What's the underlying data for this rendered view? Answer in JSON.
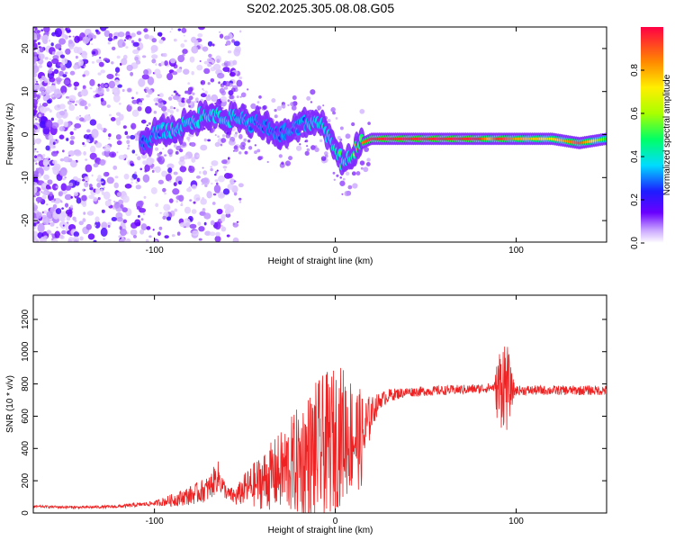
{
  "figure": {
    "title": "S202.2025.305.08.08.G05"
  },
  "chart_data": [
    {
      "type": "heatmap",
      "xlabel": "Height of straight line (km)",
      "ylabel": "Frequency (Hz)",
      "xlim": [
        -167,
        150
      ],
      "ylim": [
        -25,
        25
      ],
      "xticks": [
        -100,
        0,
        100
      ],
      "xtick_labels": [
        "-100",
        "0",
        "100"
      ],
      "yticks": [
        -20,
        -10,
        0,
        10,
        20
      ],
      "ytick_labels": [
        "-20",
        "-10",
        "0",
        "10",
        "20"
      ],
      "colorbar": {
        "label": "Normalized spectral amplitude",
        "range": [
          0,
          1
        ],
        "ticks": [
          0.0,
          0.2,
          0.4,
          0.6,
          0.8
        ],
        "tick_labels": [
          "0.0",
          "0.2",
          "0.4",
          "0.6",
          "0.8"
        ]
      },
      "ridge": {
        "x": [
          -107,
          -100,
          -90,
          -80,
          -70,
          -60,
          -50,
          -40,
          -30,
          -20,
          -10,
          -5,
          0,
          5,
          10,
          15,
          20,
          40,
          60,
          80,
          85,
          90,
          100,
          120,
          135,
          150
        ],
        "freq": [
          -2,
          0,
          1,
          3,
          5,
          4,
          3,
          2,
          0,
          2,
          3,
          1,
          -3,
          -7,
          -5,
          -2,
          -1,
          -1,
          -1,
          -1,
          -1,
          -1,
          -1,
          -1,
          -2,
          -1
        ],
        "amplitude": [
          0.25,
          0.35,
          0.45,
          0.45,
          0.5,
          0.45,
          0.4,
          0.3,
          0.3,
          0.35,
          0.45,
          0.45,
          0.55,
          0.5,
          0.6,
          0.85,
          0.95,
          0.95,
          0.95,
          0.95,
          0.75,
          0.95,
          0.8,
          0.7,
          0.9,
          0.5
        ]
      }
    },
    {
      "type": "line",
      "xlabel": "Height of straight line (km)",
      "ylabel": "SNR (10 * v/v)",
      "xlim": [
        -167,
        150
      ],
      "ylim": [
        0,
        1350
      ],
      "xticks": [
        -100,
        0,
        100
      ],
      "xtick_labels": [
        "-100",
        "0",
        "100"
      ],
      "yticks": [
        0,
        200,
        400,
        600,
        800,
        1000,
        1200
      ],
      "ytick_labels": [
        "0",
        "200",
        "400",
        "600",
        "800",
        "1000",
        "1200"
      ],
      "color": "#ee2222",
      "series": [
        {
          "name": "SNR",
          "x": [
            -167,
            -140,
            -120,
            -100,
            -90,
            -80,
            -70,
            -65,
            -60,
            -55,
            -50,
            -40,
            -30,
            -20,
            -10,
            -5,
            0,
            5,
            10,
            15,
            20,
            25,
            30,
            40,
            60,
            80,
            88,
            90,
            93,
            95,
            98,
            100,
            120,
            140,
            150
          ],
          "mean": [
            40,
            35,
            40,
            60,
            80,
            110,
            150,
            230,
            120,
            100,
            150,
            200,
            260,
            320,
            380,
            420,
            460,
            500,
            480,
            450,
            620,
            700,
            730,
            750,
            760,
            770,
            780,
            760,
            830,
            780,
            760,
            760,
            760,
            760,
            760
          ],
          "amp": [
            8,
            8,
            10,
            15,
            40,
            60,
            80,
            100,
            40,
            60,
            100,
            180,
            250,
            350,
            450,
            450,
            450,
            420,
            350,
            300,
            100,
            50,
            40,
            30,
            30,
            30,
            30,
            250,
            300,
            280,
            80,
            30,
            30,
            30,
            30
          ]
        }
      ]
    }
  ]
}
